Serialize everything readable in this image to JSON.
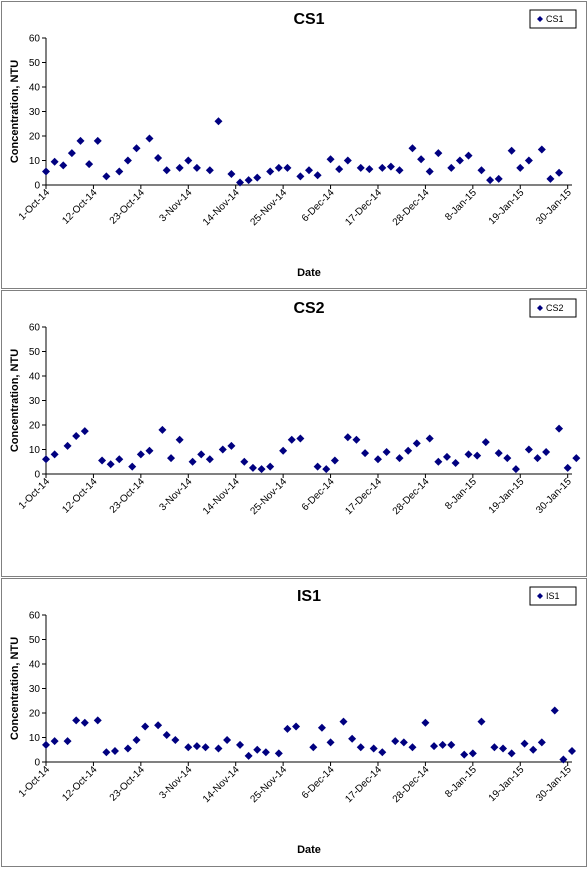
{
  "chart_data": [
    {
      "type": "scatter",
      "title": "CS1",
      "xlabel": "Date",
      "ylabel": "Concentration, NTU",
      "ylim": [
        0,
        60
      ],
      "yticks": [
        0,
        10,
        20,
        30,
        40,
        50,
        60
      ],
      "xlim": [
        "2014-10-01",
        "2015-01-31"
      ],
      "xtick_labels": [
        "1-Oct-14",
        "12-Oct-14",
        "23-Oct-14",
        "3-Nov-14",
        "14-Nov-14",
        "25-Nov-14",
        "6-Dec-14",
        "17-Dec-14",
        "28-Dec-14",
        "8-Jan-15",
        "19-Jan-15",
        "30-Jan-15"
      ],
      "grid": false,
      "legend": "top-right",
      "marker_color": "#000080",
      "series": [
        {
          "name": "CS1",
          "points": [
            [
              "2014-10-01",
              5.5
            ],
            [
              "2014-10-03",
              9.5
            ],
            [
              "2014-10-05",
              8
            ],
            [
              "2014-10-07",
              13
            ],
            [
              "2014-10-09",
              18
            ],
            [
              "2014-10-11",
              8.5
            ],
            [
              "2014-10-13",
              18
            ],
            [
              "2014-10-15",
              3.5
            ],
            [
              "2014-10-18",
              5.5
            ],
            [
              "2014-10-20",
              10
            ],
            [
              "2014-10-22",
              15
            ],
            [
              "2014-10-25",
              19
            ],
            [
              "2014-10-27",
              11
            ],
            [
              "2014-10-29",
              6
            ],
            [
              "2014-11-01",
              7
            ],
            [
              "2014-11-03",
              10
            ],
            [
              "2014-11-05",
              7
            ],
            [
              "2014-11-08",
              6
            ],
            [
              "2014-11-10",
              26
            ],
            [
              "2014-11-13",
              4.5
            ],
            [
              "2014-11-15",
              1
            ],
            [
              "2014-11-17",
              2
            ],
            [
              "2014-11-19",
              3
            ],
            [
              "2014-11-22",
              5.5
            ],
            [
              "2014-11-24",
              7
            ],
            [
              "2014-11-26",
              7
            ],
            [
              "2014-11-29",
              3.5
            ],
            [
              "2014-12-01",
              6
            ],
            [
              "2014-12-03",
              4
            ],
            [
              "2014-12-06",
              10.5
            ],
            [
              "2014-12-08",
              6.5
            ],
            [
              "2014-12-10",
              10
            ],
            [
              "2014-12-13",
              7
            ],
            [
              "2014-12-15",
              6.5
            ],
            [
              "2014-12-18",
              7
            ],
            [
              "2014-12-20",
              7.5
            ],
            [
              "2014-12-22",
              6
            ],
            [
              "2014-12-25",
              15
            ],
            [
              "2014-12-27",
              10.5
            ],
            [
              "2014-12-29",
              5.5
            ],
            [
              "2014-12-31",
              13
            ],
            [
              "2015-01-03",
              7
            ],
            [
              "2015-01-05",
              10
            ],
            [
              "2015-01-07",
              12
            ],
            [
              "2015-01-10",
              6
            ],
            [
              "2015-01-12",
              2
            ],
            [
              "2015-01-14",
              2.5
            ],
            [
              "2015-01-17",
              14
            ],
            [
              "2015-01-19",
              7
            ],
            [
              "2015-01-21",
              10
            ],
            [
              "2015-01-24",
              14.5
            ],
            [
              "2015-01-26",
              2.5
            ],
            [
              "2015-01-28",
              5
            ]
          ]
        }
      ]
    },
    {
      "type": "scatter",
      "title": "CS2",
      "xlabel": "",
      "ylabel": "Concentration, NTU",
      "ylim": [
        0,
        60
      ],
      "yticks": [
        0,
        10,
        20,
        30,
        40,
        50,
        60
      ],
      "xlim": [
        "2014-10-01",
        "2015-01-31"
      ],
      "xtick_labels": [
        "1-Oct-14",
        "12-Oct-14",
        "23-Oct-14",
        "3-Nov-14",
        "14-Nov-14",
        "25-Nov-14",
        "6-Dec-14",
        "17-Dec-14",
        "28-Dec-14",
        "8-Jan-15",
        "19-Jan-15",
        "30-Jan-15"
      ],
      "grid": false,
      "legend": "top-right",
      "marker_color": "#000080",
      "series": [
        {
          "name": "CS2",
          "points": [
            [
              "2014-10-01",
              6
            ],
            [
              "2014-10-03",
              8
            ],
            [
              "2014-10-06",
              11.5
            ],
            [
              "2014-10-08",
              15.5
            ],
            [
              "2014-10-10",
              17.5
            ],
            [
              "2014-10-14",
              5.5
            ],
            [
              "2014-10-16",
              4
            ],
            [
              "2014-10-18",
              6
            ],
            [
              "2014-10-21",
              3
            ],
            [
              "2014-10-23",
              8
            ],
            [
              "2014-10-25",
              9.5
            ],
            [
              "2014-10-28",
              18
            ],
            [
              "2014-10-30",
              6.5
            ],
            [
              "2014-11-01",
              14
            ],
            [
              "2014-11-04",
              5
            ],
            [
              "2014-11-06",
              8
            ],
            [
              "2014-11-08",
              6
            ],
            [
              "2014-11-11",
              10
            ],
            [
              "2014-11-13",
              11.5
            ],
            [
              "2014-11-16",
              5
            ],
            [
              "2014-11-18",
              2.5
            ],
            [
              "2014-11-20",
              2
            ],
            [
              "2014-11-22",
              3
            ],
            [
              "2014-11-25",
              9.5
            ],
            [
              "2014-11-27",
              14
            ],
            [
              "2014-11-29",
              14.5
            ],
            [
              "2014-12-03",
              3
            ],
            [
              "2014-12-05",
              2
            ],
            [
              "2014-12-07",
              5.5
            ],
            [
              "2014-12-10",
              15
            ],
            [
              "2014-12-12",
              14
            ],
            [
              "2014-12-14",
              8.5
            ],
            [
              "2014-12-17",
              6
            ],
            [
              "2014-12-19",
              9
            ],
            [
              "2014-12-22",
              6.5
            ],
            [
              "2014-12-24",
              9.5
            ],
            [
              "2014-12-26",
              12.5
            ],
            [
              "2014-12-29",
              14.5
            ],
            [
              "2014-12-31",
              5
            ],
            [
              "2015-01-02",
              7
            ],
            [
              "2015-01-04",
              4.5
            ],
            [
              "2015-01-07",
              8
            ],
            [
              "2015-01-09",
              7.5
            ],
            [
              "2015-01-11",
              13
            ],
            [
              "2015-01-14",
              8.5
            ],
            [
              "2015-01-16",
              6.5
            ],
            [
              "2015-01-18",
              2
            ],
            [
              "2015-01-21",
              10
            ],
            [
              "2015-01-23",
              6.5
            ],
            [
              "2015-01-25",
              9
            ],
            [
              "2015-01-28",
              18.5
            ],
            [
              "2015-01-30",
              2.5
            ],
            [
              "2015-02-01",
              6.5
            ]
          ]
        }
      ]
    },
    {
      "type": "scatter",
      "title": "IS1",
      "xlabel": "Date",
      "ylabel": "Concentration, NTU",
      "ylim": [
        0,
        60
      ],
      "yticks": [
        0,
        10,
        20,
        30,
        40,
        50,
        60
      ],
      "xlim": [
        "2014-10-01",
        "2015-01-31"
      ],
      "xtick_labels": [
        "1-Oct-14",
        "12-Oct-14",
        "23-Oct-14",
        "3-Nov-14",
        "14-Nov-14",
        "25-Nov-14",
        "6-Dec-14",
        "17-Dec-14",
        "28-Dec-14",
        "8-Jan-15",
        "19-Jan-15",
        "30-Jan-15"
      ],
      "grid": false,
      "legend": "top-right",
      "marker_color": "#000080",
      "series": [
        {
          "name": "IS1",
          "points": [
            [
              "2014-10-01",
              7
            ],
            [
              "2014-10-03",
              8.5
            ],
            [
              "2014-10-06",
              8.5
            ],
            [
              "2014-10-08",
              17
            ],
            [
              "2014-10-10",
              16
            ],
            [
              "2014-10-13",
              17
            ],
            [
              "2014-10-15",
              4
            ],
            [
              "2014-10-17",
              4.5
            ],
            [
              "2014-10-20",
              5.5
            ],
            [
              "2014-10-22",
              9
            ],
            [
              "2014-10-24",
              14.5
            ],
            [
              "2014-10-27",
              15
            ],
            [
              "2014-10-29",
              11
            ],
            [
              "2014-10-31",
              9
            ],
            [
              "2014-11-03",
              6
            ],
            [
              "2014-11-05",
              6.5
            ],
            [
              "2014-11-07",
              6
            ],
            [
              "2014-11-10",
              5.5
            ],
            [
              "2014-11-12",
              9
            ],
            [
              "2014-11-15",
              7
            ],
            [
              "2014-11-17",
              2.5
            ],
            [
              "2014-11-19",
              5
            ],
            [
              "2014-11-21",
              4
            ],
            [
              "2014-11-24",
              3.5
            ],
            [
              "2014-11-26",
              13.5
            ],
            [
              "2014-11-28",
              14.5
            ],
            [
              "2014-12-02",
              6
            ],
            [
              "2014-12-04",
              14
            ],
            [
              "2014-12-06",
              8
            ],
            [
              "2014-12-09",
              16.5
            ],
            [
              "2014-12-11",
              9.5
            ],
            [
              "2014-12-13",
              6
            ],
            [
              "2014-12-16",
              5.5
            ],
            [
              "2014-12-18",
              4
            ],
            [
              "2014-12-21",
              8.5
            ],
            [
              "2014-12-23",
              8
            ],
            [
              "2014-12-25",
              6
            ],
            [
              "2014-12-28",
              16
            ],
            [
              "2014-12-30",
              6.5
            ],
            [
              "2015-01-01",
              7
            ],
            [
              "2015-01-03",
              7
            ],
            [
              "2015-01-06",
              3
            ],
            [
              "2015-01-08",
              3.5
            ],
            [
              "2015-01-10",
              16.5
            ],
            [
              "2015-01-13",
              6
            ],
            [
              "2015-01-15",
              5.5
            ],
            [
              "2015-01-17",
              3.5
            ],
            [
              "2015-01-20",
              7.5
            ],
            [
              "2015-01-22",
              5
            ],
            [
              "2015-01-24",
              8
            ],
            [
              "2015-01-27",
              21
            ],
            [
              "2015-01-29",
              1
            ],
            [
              "2015-01-31",
              4.5
            ]
          ]
        }
      ]
    }
  ]
}
